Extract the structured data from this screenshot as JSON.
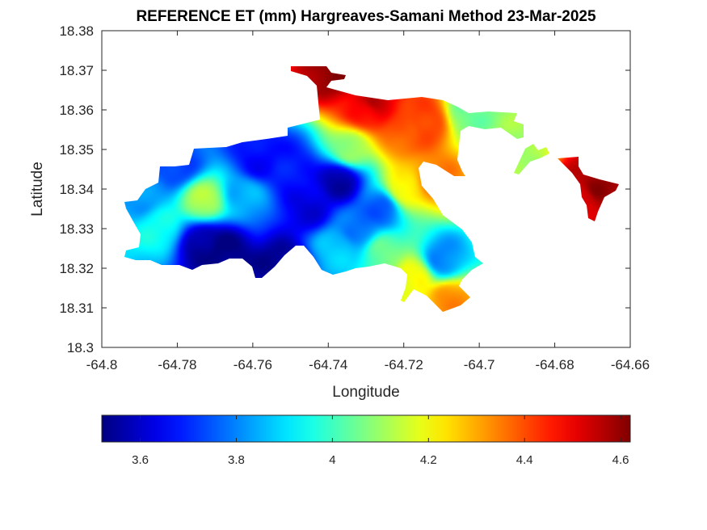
{
  "chart_data": {
    "type": "heatmap",
    "title": "REFERENCE ET (mm) Hargreaves-Samani Method  23-Mar-2025",
    "xlabel": "Longitude",
    "ylabel": "Latitude",
    "xlim": [
      -64.8,
      -64.66
    ],
    "ylim": [
      18.3,
      18.38
    ],
    "x_ticks": [
      -64.8,
      -64.78,
      -64.76,
      -64.74,
      -64.72,
      -64.7,
      -64.68,
      -64.66
    ],
    "x_tick_labels": [
      "-64.8",
      "-64.78",
      "-64.76",
      "-64.74",
      "-64.72",
      "-64.7",
      "-64.68",
      "-64.66"
    ],
    "y_ticks": [
      18.3,
      18.31,
      18.32,
      18.33,
      18.34,
      18.35,
      18.36,
      18.37,
      18.38
    ],
    "y_tick_labels": [
      "18.3",
      "18.31",
      "18.32",
      "18.33",
      "18.34",
      "18.35",
      "18.36",
      "18.37",
      "18.38"
    ],
    "colormap": "jet",
    "color_range": [
      3.52,
      4.62
    ],
    "colorbar_ticks": [
      3.6,
      3.8,
      4.0,
      4.2,
      4.4,
      4.6
    ],
    "colorbar_tick_labels": [
      "3.6",
      "3.8",
      "4",
      "4.2",
      "4.4",
      "4.6"
    ],
    "colorbar_location": "bottom",
    "grid": false,
    "regions": [
      {
        "lon": -64.768,
        "lat": 18.324,
        "value": 3.52
      },
      {
        "lon": -64.752,
        "lat": 18.32,
        "value": 3.53
      },
      {
        "lon": -64.773,
        "lat": 18.326,
        "value": 3.55
      },
      {
        "lon": -64.737,
        "lat": 18.342,
        "value": 3.56
      },
      {
        "lon": -64.745,
        "lat": 18.335,
        "value": 3.62
      },
      {
        "lon": -64.758,
        "lat": 18.347,
        "value": 3.66
      },
      {
        "lon": -64.75,
        "lat": 18.346,
        "value": 3.68
      },
      {
        "lon": -64.78,
        "lat": 18.346,
        "value": 3.72
      },
      {
        "lon": -64.726,
        "lat": 18.335,
        "value": 3.75
      },
      {
        "lon": -64.732,
        "lat": 18.33,
        "value": 3.78
      },
      {
        "lon": -64.71,
        "lat": 18.322,
        "value": 3.8
      },
      {
        "lon": -64.79,
        "lat": 18.338,
        "value": 3.82
      },
      {
        "lon": -64.762,
        "lat": 18.338,
        "value": 3.85
      },
      {
        "lon": -64.738,
        "lat": 18.325,
        "value": 3.88
      },
      {
        "lon": -64.773,
        "lat": 18.337,
        "value": 4.12
      },
      {
        "lon": -64.785,
        "lat": 18.33,
        "value": 3.95
      },
      {
        "lon": -64.725,
        "lat": 18.324,
        "value": 4.05
      },
      {
        "lon": -64.734,
        "lat": 18.35,
        "value": 4.1
      },
      {
        "lon": -64.717,
        "lat": 18.318,
        "value": 4.2
      },
      {
        "lon": -64.72,
        "lat": 18.34,
        "value": 4.22
      },
      {
        "lon": -64.703,
        "lat": 18.359,
        "value": 4.05
      },
      {
        "lon": -64.69,
        "lat": 18.349,
        "value": 4.1
      },
      {
        "lon": -64.708,
        "lat": 18.312,
        "value": 4.33
      },
      {
        "lon": -64.72,
        "lat": 18.354,
        "value": 4.38
      },
      {
        "lon": -64.73,
        "lat": 18.36,
        "value": 4.48
      },
      {
        "lon": -64.714,
        "lat": 18.357,
        "value": 4.42
      },
      {
        "lon": -64.739,
        "lat": 18.369,
        "value": 4.6
      },
      {
        "lon": -64.728,
        "lat": 18.362,
        "value": 4.55
      },
      {
        "lon": -64.672,
        "lat": 18.338,
        "value": 4.52
      },
      {
        "lon": -64.669,
        "lat": 18.34,
        "value": 4.6
      },
      {
        "lon": -64.712,
        "lat": 18.343,
        "value": 4.35
      }
    ]
  }
}
